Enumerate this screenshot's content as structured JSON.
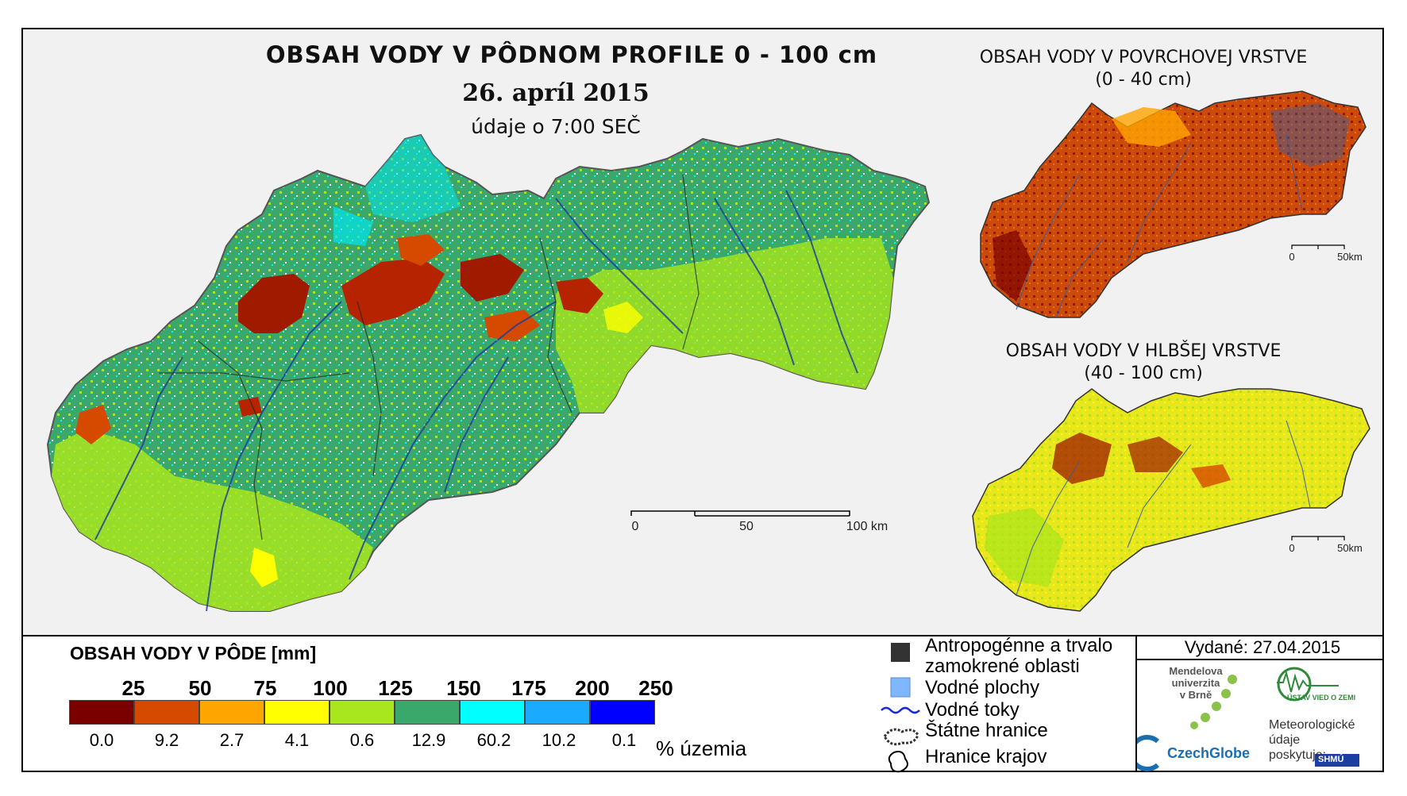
{
  "main": {
    "title": "OBSAH VODY V PÔDNOM PROFILE 0 - 100 cm",
    "date": "26. apríl 2015",
    "time": "údaje o 7:00 SEČ",
    "scale_labels": [
      "0",
      "50",
      "100 km"
    ]
  },
  "inset_top": {
    "title_line1": "OBSAH VODY V POVRCHOVEJ VRSTVE",
    "title_line2": "(0 - 40 cm)",
    "scale_labels": [
      "0",
      "50km"
    ]
  },
  "inset_bottom": {
    "title_line1": "OBSAH VODY V HLBŠEJ VRSTVE",
    "title_line2": "(40 - 100 cm)",
    "scale_labels": [
      "0",
      "50km"
    ]
  },
  "legend": {
    "title": "OBSAH VODY V PÔDE [mm]",
    "breaks": [
      "25",
      "50",
      "75",
      "100",
      "125",
      "150",
      "175",
      "200",
      "250"
    ],
    "colors": [
      "#7a0000",
      "#d64a00",
      "#ffa500",
      "#ffff00",
      "#a8e61d",
      "#3aa86b",
      "#00ffff",
      "#1aaaff",
      "#0000ff"
    ],
    "percentages": [
      "0.0",
      "9.2",
      "2.7",
      "4.1",
      "0.6",
      "12.9",
      "60.2",
      "10.2",
      "0.1"
    ],
    "unit": "% územia"
  },
  "symbols": {
    "anthropogenic_line1": "Antropogénne a trvalo",
    "anthropogenic_line2": "zamokrené oblasti",
    "water_bodies": "Vodné plochy",
    "streams": "Vodné toky",
    "state_border": "Štátne hranice",
    "region_border": "Hranice krajov"
  },
  "footer": {
    "issued": "Vydané: 27.04.2015",
    "mendel_line1": "Mendelova",
    "mendel_line2": "univerzita",
    "mendel_line3": "v Brně",
    "czechglobe": "CzechGlobe",
    "uvz": "ÚSTAV VIED O ZEMI",
    "meteo_line1": "Meteorologické",
    "meteo_line2": "údaje",
    "meteo_line3": "poskytuje:",
    "shmu": "SHMÚ"
  }
}
